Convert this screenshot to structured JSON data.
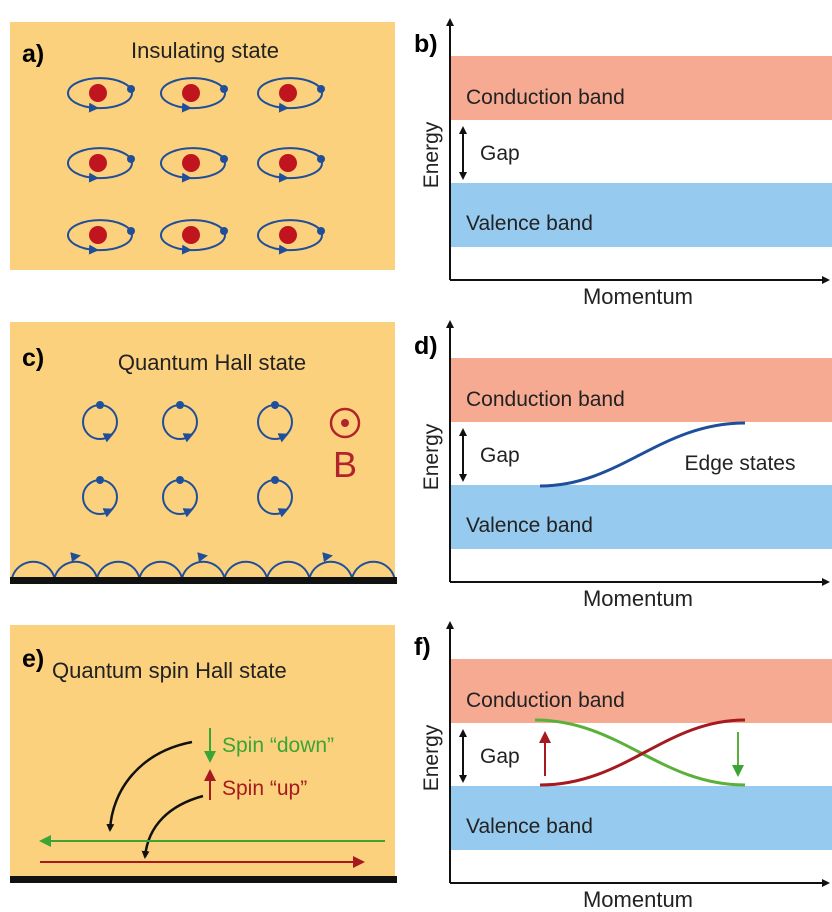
{
  "panels": [
    {
      "label": "a)",
      "title": "Insulating state"
    },
    {
      "label": "b)",
      "axis_y": "Energy",
      "axis_x": "Momentum",
      "upper_band": "Conduction band",
      "gap": "Gap",
      "lower_band": "Valence band"
    },
    {
      "label": "c)",
      "title": "Quantum Hall state",
      "field": "B"
    },
    {
      "label": "d)",
      "axis_y": "Energy",
      "axis_x": "Momentum",
      "upper_band": "Conduction band",
      "gap": "Gap",
      "lower_band": "Valence band",
      "edge": "Edge states"
    },
    {
      "label": "e)",
      "title": "Quantum spin Hall state",
      "spin_down": "Spin “down”",
      "spin_up": "Spin “up”"
    },
    {
      "label": "f)",
      "axis_y": "Energy",
      "axis_x": "Momentum",
      "upper_band": "Conduction band",
      "gap": "Gap",
      "lower_band": "Valence band"
    }
  ]
}
